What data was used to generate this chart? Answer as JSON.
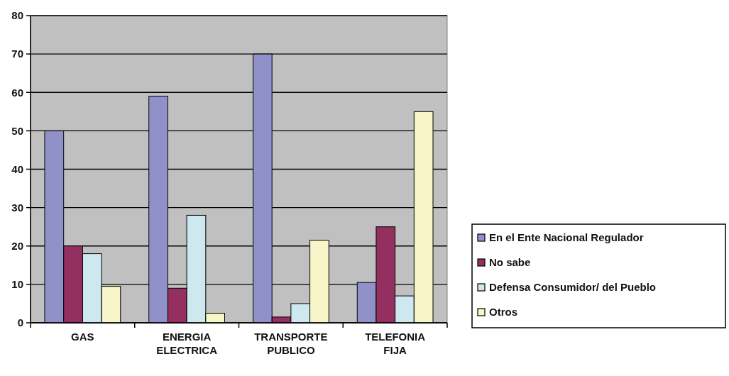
{
  "chart_data": {
    "type": "bar",
    "categories": [
      "GAS",
      "ENERGIA ELECTRICA",
      "TRANSPORTE PUBLICO",
      "TELEFONIA FIJA"
    ],
    "series": [
      {
        "name": "En el Ente Nacional Regulador",
        "color": "#9191c9",
        "values": [
          50,
          59,
          70,
          10.5
        ]
      },
      {
        "name": "No sabe",
        "color": "#93305f",
        "values": [
          20,
          9,
          1.5,
          25
        ]
      },
      {
        "name": "Defensa Consumidor/ del Pueblo",
        "color": "#cde8ee",
        "values": [
          18,
          28,
          5,
          7
        ]
      },
      {
        "name": "Otros",
        "color": "#f8f5c8",
        "values": [
          9.5,
          2.5,
          21.5,
          55
        ]
      }
    ],
    "ylim": [
      0,
      80
    ],
    "yticks": [
      0,
      10,
      20,
      30,
      40,
      50,
      60,
      70,
      80
    ],
    "grid": "y",
    "legend": "right"
  }
}
